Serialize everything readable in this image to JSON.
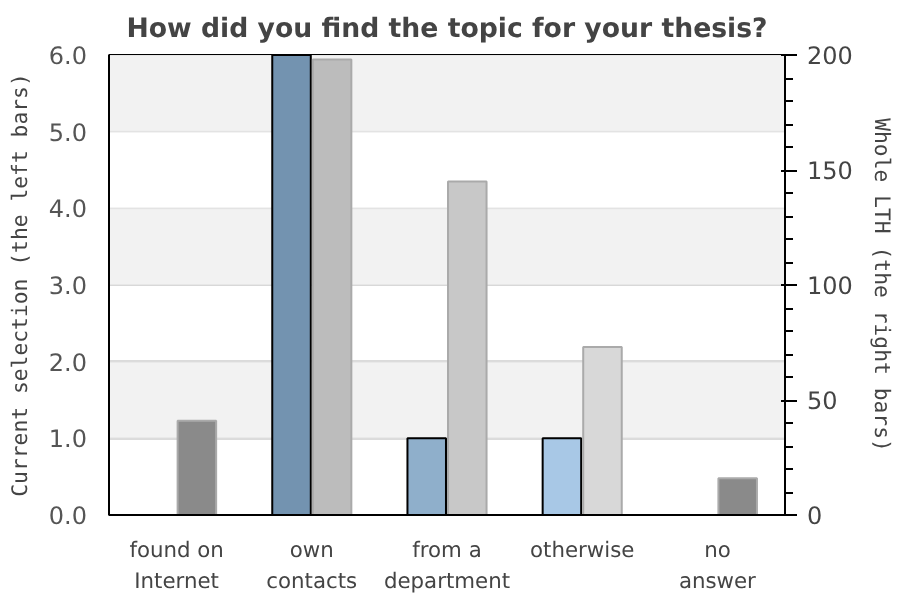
{
  "chart_data": {
    "type": "bar",
    "title": "How did you find the topic for your thesis?",
    "ylabel": "Current selection (the left bars)",
    "y2label": "Whole LTH (the right bars)",
    "categories": [
      "found on Internet",
      "own contacts",
      "from a department",
      "otherwise",
      "no answer"
    ],
    "series": [
      {
        "colors": [
          "#a8c8e6",
          "#7393b0",
          "#8fafcb",
          "#a8c8e6",
          "#a8c8e6"
        ],
        "values": [
          0,
          6,
          1,
          1,
          0
        ]
      },
      {
        "colors": [
          "#8a8a8a",
          "#bcbcbc",
          "#c8c8c8",
          "#d8d8d8",
          "#8a8a8a"
        ],
        "values": [
          41,
          198,
          145,
          73,
          16
        ],
        "axis": "y2"
      }
    ],
    "ylim": [
      0,
      6
    ],
    "yticks": [
      {
        "value": 0,
        "label": "0.0"
      },
      {
        "value": 1,
        "label": "1.0"
      },
      {
        "value": 2,
        "label": "2.0"
      },
      {
        "value": 3,
        "label": "3.0"
      },
      {
        "value": 4,
        "label": "4.0"
      },
      {
        "value": 5,
        "label": "5.0"
      },
      {
        "value": 6,
        "label": "6.0"
      }
    ],
    "y2lim": [
      0,
      200
    ],
    "y2ticks": [
      0,
      {
        "value": 10,
        "label": null
      },
      {
        "value": 20,
        "label": null
      },
      {
        "value": 30,
        "label": null
      },
      {
        "value": 40,
        "label": null
      },
      50,
      {
        "value": 60,
        "label": null
      },
      {
        "value": 70,
        "label": null
      },
      {
        "value": 80,
        "label": null
      },
      {
        "value": 90,
        "label": null
      },
      100,
      {
        "value": 110,
        "label": null
      },
      {
        "value": 120,
        "label": null
      },
      {
        "value": 130,
        "label": null
      },
      {
        "value": 140,
        "label": null
      },
      150,
      {
        "value": 160,
        "label": null
      },
      {
        "value": 170,
        "label": null
      },
      {
        "value": 180,
        "label": null
      },
      {
        "value": 190,
        "label": null
      },
      200
    ],
    "bands": [
      {
        "axis": "y",
        "from": 1,
        "to": 2,
        "color": "#f2f2f2"
      },
      {
        "axis": "y",
        "from": 3,
        "to": 4,
        "color": "#f2f2f2"
      },
      {
        "axis": "y",
        "from": 5,
        "to": 6,
        "color": "#f2f2f2"
      }
    ],
    "grid": "y"
  }
}
